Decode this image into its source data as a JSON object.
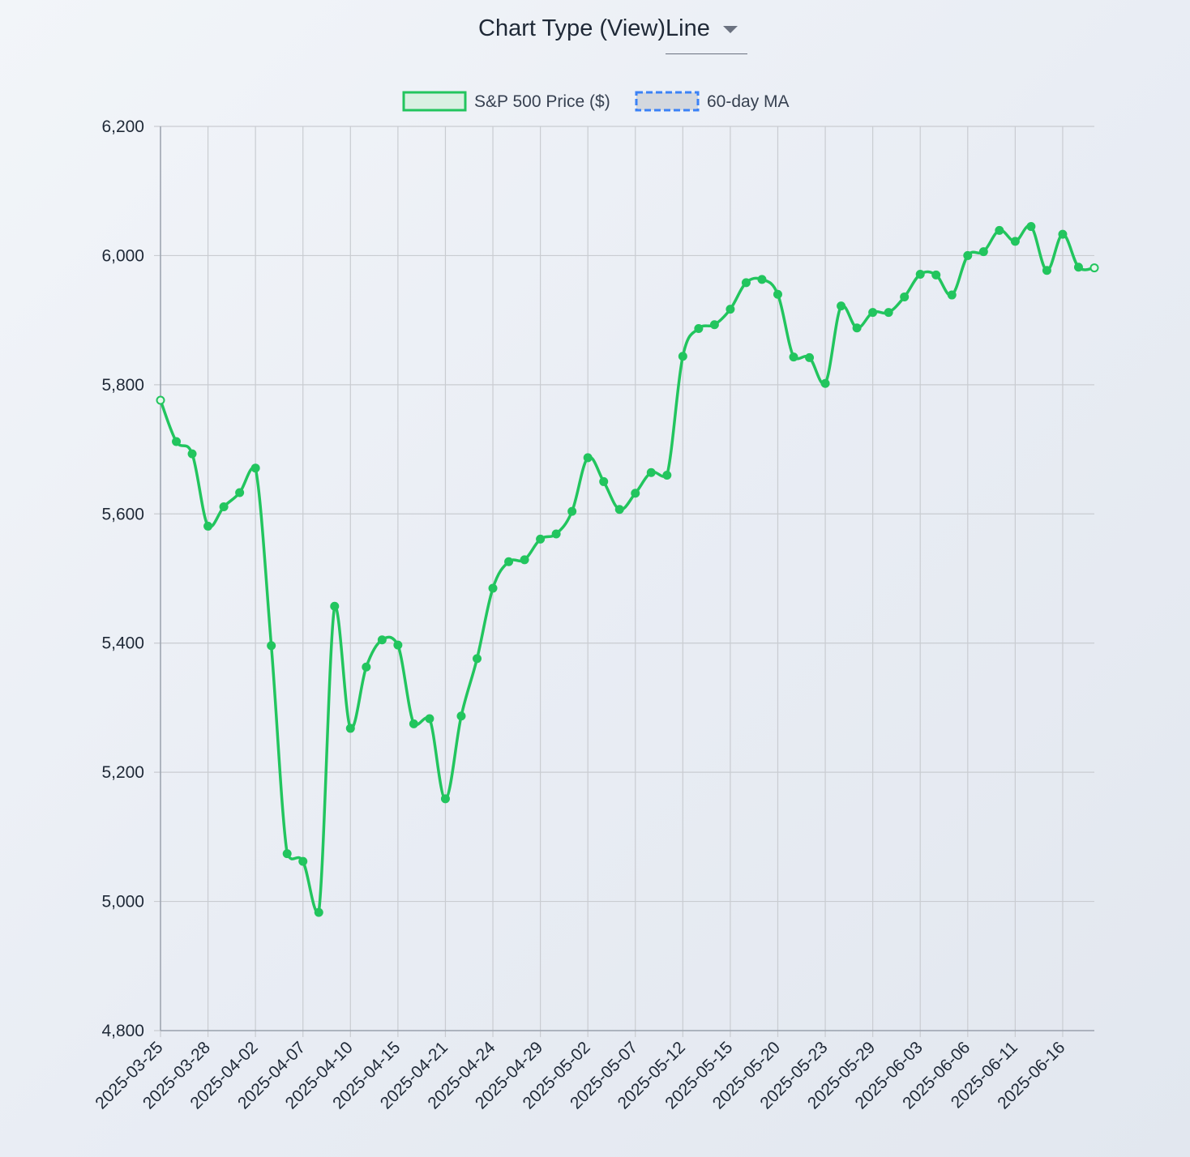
{
  "controls": {
    "chart_type_label": "Chart Type (View)",
    "chart_type_value": "Line"
  },
  "colors": {
    "price_line": "#22c55e",
    "price_fill": "#d9f0e2",
    "ma_border": "#3b82f6",
    "ma_fill": "#d4d8de",
    "grid": "#c9ccd1",
    "axis": "#9ca3af"
  },
  "chart_data": {
    "type": "line",
    "legend_placement": "top-center",
    "grid": true,
    "ylim": [
      4800,
      6200
    ],
    "yticks": [
      4800,
      5000,
      5200,
      5400,
      5600,
      5800,
      6000,
      6200
    ],
    "ytick_labels": [
      "4,800",
      "5,000",
      "5,200",
      "5,400",
      "5,600",
      "5,800",
      "6,000",
      "6,200"
    ],
    "xtick_labels": [
      "2025-03-25",
      "2025-03-28",
      "2025-04-02",
      "2025-04-07",
      "2025-04-10",
      "2025-04-15",
      "2025-04-21",
      "2025-04-24",
      "2025-04-29",
      "2025-05-02",
      "2025-05-07",
      "2025-05-12",
      "2025-05-15",
      "2025-05-20",
      "2025-05-23",
      "2025-05-29",
      "2025-06-03",
      "2025-06-06",
      "2025-06-11",
      "2025-06-16"
    ],
    "xtick_every": 3,
    "series": [
      {
        "name": "S&P 500 Price ($)",
        "style": "solid",
        "values": [
          5776,
          5712,
          5693,
          5581,
          5611,
          5633,
          5671,
          5396,
          5074,
          5062,
          4983,
          5457,
          5268,
          5363,
          5405,
          5397,
          5275,
          5283,
          5159,
          5287,
          5376,
          5485,
          5526,
          5529,
          5561,
          5569,
          5604,
          5687,
          5650,
          5607,
          5632,
          5664,
          5660,
          5844,
          5887,
          5893,
          5917,
          5958,
          5963,
          5940,
          5843,
          5842,
          5802,
          5922,
          5888,
          5912,
          5912,
          5936,
          5971,
          5970,
          5939,
          6000,
          6006,
          6039,
          6022,
          6045,
          5977,
          6033,
          5982,
          5981
        ]
      },
      {
        "name": "60-day MA",
        "style": "dashed",
        "values": []
      }
    ]
  }
}
